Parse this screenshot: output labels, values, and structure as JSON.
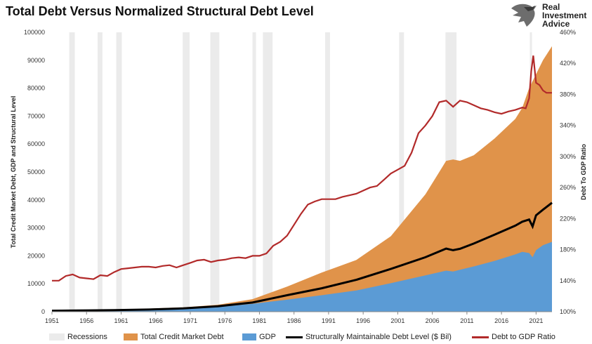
{
  "title": "Total Debt Versus Normalized Structural Debt Level",
  "logo": {
    "line1": "Real",
    "line2": "Investment",
    "line3": "Advice",
    "icon": "eagle-icon"
  },
  "colors": {
    "recession": "#ebebeb",
    "debt": "#e0934a",
    "gdp": "#5b9bd5",
    "structural": "#000000",
    "ratio": "#b22a2a"
  },
  "chart_data": {
    "type": "area",
    "title": "Total Debt Versus Normalized Structural Debt Level",
    "ylabel": "Total Credit Market Debt, GDP and Structural Level",
    "y2label": "Debt To GDP Ratio",
    "xlim": [
      1951,
      2023.3
    ],
    "ylim": [
      0,
      100000
    ],
    "y2lim": [
      100,
      460
    ],
    "x_ticks": [
      "1951",
      "1956",
      "1961",
      "1966",
      "1971",
      "1976",
      "1981",
      "1986",
      "1991",
      "1996",
      "2001",
      "2006",
      "2011",
      "2016",
      "2021"
    ],
    "y_ticks": [
      "0",
      "10000",
      "20000",
      "30000",
      "40000",
      "50000",
      "60000",
      "70000",
      "80000",
      "90000",
      "100000"
    ],
    "y2_ticks": [
      "100%",
      "140%",
      "180%",
      "220%",
      "260%",
      "300%",
      "340%",
      "380%",
      "420%",
      "460%"
    ],
    "recessions": [
      [
        1953.5,
        1954.3
      ],
      [
        1957.6,
        1958.3
      ],
      [
        1960.3,
        1961.1
      ],
      [
        1969.9,
        1970.9
      ],
      [
        1973.9,
        1975.2
      ],
      [
        1980.0,
        1980.5
      ],
      [
        1981.5,
        1982.9
      ],
      [
        1990.5,
        1991.2
      ],
      [
        2001.2,
        2001.9
      ],
      [
        2007.9,
        2009.5
      ],
      [
        2020.1,
        2020.4
      ]
    ],
    "series": [
      {
        "name": "Total Credit Market Debt",
        "kind": "area",
        "x": [
          1951,
          1955,
          1960,
          1965,
          1970,
          1975,
          1980,
          1985,
          1990,
          1995,
          2000,
          2005,
          2007,
          2008,
          2009,
          2010,
          2012,
          2015,
          2018,
          2019,
          2020,
          2021,
          2022,
          2023.3
        ],
        "y": [
          470,
          610,
          780,
          1100,
          1580,
          2500,
          4500,
          9000,
          14000,
          18500,
          27000,
          42000,
          50000,
          54000,
          54500,
          54000,
          56000,
          62000,
          69000,
          73000,
          80000,
          85000,
          90000,
          95000
        ]
      },
      {
        "name": "GDP",
        "kind": "area",
        "x": [
          1951,
          1955,
          1960,
          1965,
          1970,
          1975,
          1980,
          1985,
          1990,
          1995,
          2000,
          2005,
          2008,
          2009,
          2010,
          2012,
          2015,
          2018,
          2019,
          2020,
          2020.5,
          2021,
          2022,
          2023.3
        ],
        "y": [
          340,
          420,
          540,
          740,
          1070,
          1700,
          2850,
          4300,
          5900,
          7600,
          10200,
          13000,
          14700,
          14400,
          15000,
          16200,
          18200,
          20500,
          21400,
          21000,
          19500,
          22000,
          23800,
          25000
        ]
      },
      {
        "name": "Structurally Maintainable Debt Level ($ Bil)",
        "kind": "line",
        "x": [
          1951,
          1955,
          1960,
          1965,
          1970,
          1975,
          1980,
          1985,
          1990,
          1995,
          2000,
          2005,
          2008,
          2009,
          2010,
          2012,
          2015,
          2018,
          2019,
          2020,
          2020.5,
          2021,
          2022,
          2023.3
        ],
        "y": [
          350,
          430,
          560,
          780,
          1170,
          1950,
          3300,
          5900,
          8400,
          11400,
          15300,
          19500,
          22600,
          22000,
          22500,
          24400,
          27600,
          30800,
          32200,
          33000,
          30500,
          34500,
          36500,
          39000
        ]
      },
      {
        "name": "Debt to GDP Ratio",
        "kind": "line",
        "axis": "secondary",
        "x": [
          1951,
          1952,
          1953,
          1954,
          1955,
          1956,
          1957,
          1958,
          1959,
          1960,
          1961,
          1962,
          1963,
          1964,
          1965,
          1966,
          1967,
          1968,
          1969,
          1970,
          1971,
          1972,
          1973,
          1974,
          1975,
          1976,
          1977,
          1978,
          1979,
          1980,
          1981,
          1982,
          1983,
          1984,
          1985,
          1986,
          1987,
          1988,
          1989,
          1990,
          1991,
          1992,
          1993,
          1994,
          1995,
          1996,
          1997,
          1998,
          1999,
          2000,
          2001,
          2002,
          2003,
          2004,
          2005,
          2006,
          2007,
          2008,
          2009,
          2010,
          2011,
          2012,
          2013,
          2014,
          2015,
          2016,
          2017,
          2018,
          2019,
          2019.5,
          2020,
          2020.3,
          2020.6,
          2021,
          2021.5,
          2022,
          2022.5,
          2023.3
        ],
        "y": [
          140,
          140,
          146,
          148,
          144,
          143,
          142,
          147,
          146,
          151,
          155,
          156,
          157,
          158,
          158,
          157,
          159,
          160,
          157,
          160,
          163,
          166,
          167,
          164,
          166,
          167,
          169,
          170,
          169,
          172,
          172,
          175,
          185,
          190,
          198,
          212,
          226,
          238,
          242,
          245,
          245,
          245,
          248,
          250,
          252,
          256,
          260,
          262,
          270,
          278,
          283,
          288,
          305,
          330,
          340,
          352,
          370,
          372,
          364,
          372,
          370,
          366,
          362,
          360,
          357,
          355,
          358,
          360,
          363,
          362,
          375,
          410,
          430,
          395,
          392,
          385,
          382,
          382
        ]
      }
    ],
    "legend": [
      "Recessions",
      "Total Credit Market Debt",
      "GDP",
      "Structurally Maintainable Debt Level ($ Bil)",
      "Debt to GDP Ratio"
    ],
    "legend_position": "bottom",
    "grid": false
  }
}
